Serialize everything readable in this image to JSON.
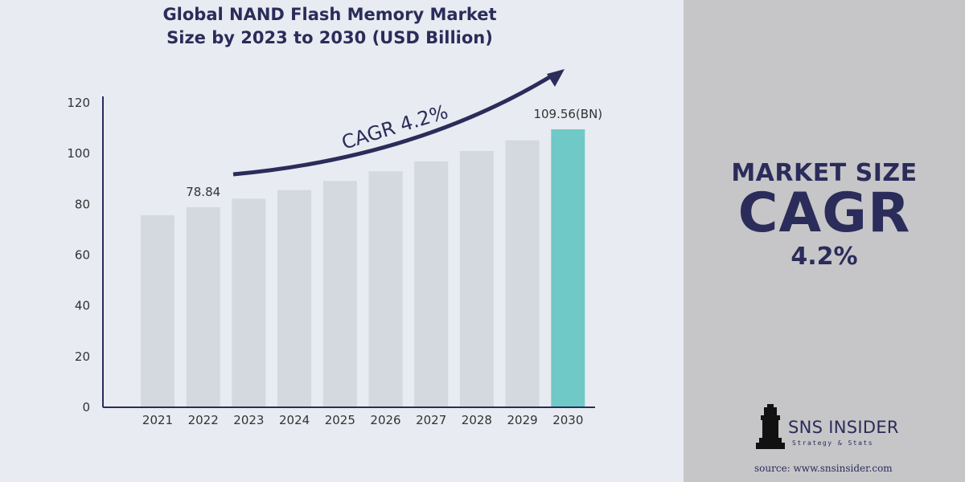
{
  "colors": {
    "background_left": "#e8ebf1",
    "background_right": "#c6c6c8",
    "bar": "#d3d9de",
    "highlight_bar": "#6fc9c6",
    "navy": "#2b2c5a"
  },
  "chart_data": {
    "type": "bar",
    "title": "Global NAND Flash Memory Market Size by 2023 to 2030 (USD Billion)",
    "title_lines": [
      "Global NAND Flash Memory Market",
      "Size by 2023 to 2030 (USD Billion)"
    ],
    "xlabel": "",
    "ylabel": "",
    "categories": [
      "2021",
      "2022",
      "2023",
      "2024",
      "2025",
      "2026",
      "2027",
      "2028",
      "2029",
      "2030"
    ],
    "values": [
      75.7,
      78.84,
      82.2,
      85.6,
      89.2,
      93.0,
      96.9,
      101.0,
      105.2,
      109.56
    ],
    "ylim": [
      0,
      120
    ],
    "yticks": [
      0,
      20,
      40,
      60,
      80,
      100,
      120
    ],
    "grid": false,
    "highlight_index": 9,
    "data_labels": [
      {
        "index": 1,
        "text": "78.84"
      },
      {
        "index": 9,
        "text": "109.56(BN)"
      }
    ],
    "annotation": "CAGR 4.2%"
  },
  "sidebar": {
    "title": "MARKET SIZE",
    "cagr_label": "CAGR",
    "cagr_value": "4.2%"
  },
  "logo": {
    "name": "SNS INSIDER",
    "tagline": "Strategy & Stats"
  },
  "source": "source: www.snsinsider.com"
}
